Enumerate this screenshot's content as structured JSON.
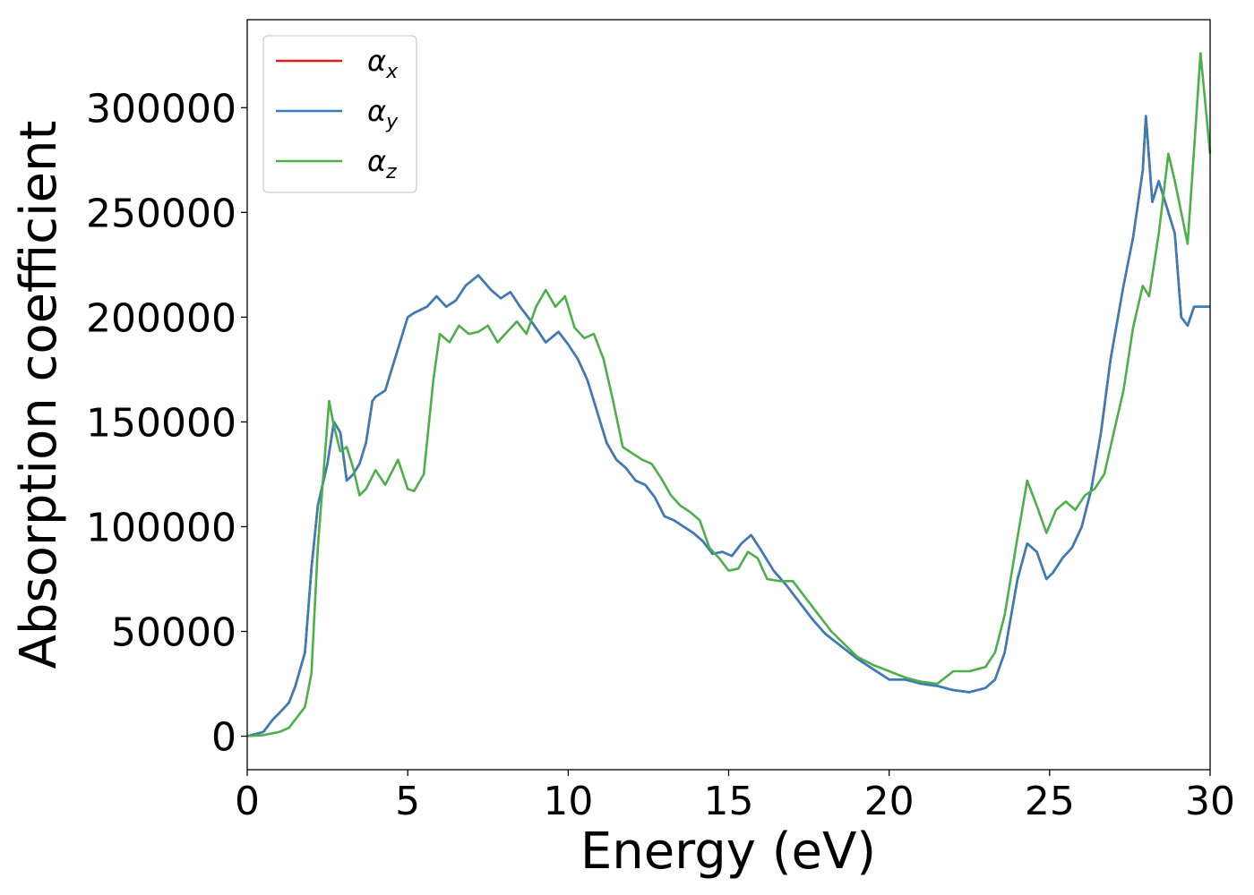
{
  "chart_data": {
    "type": "line",
    "title": "",
    "xlabel": "Energy (eV)",
    "ylabel": "Absorption coefficient",
    "xlim": [
      0,
      30
    ],
    "ylim": [
      -16000,
      342000
    ],
    "xticks": [
      "0",
      "5",
      "10",
      "15",
      "20",
      "25",
      "30"
    ],
    "yticks": [
      "0",
      "50000",
      "100000",
      "150000",
      "200000",
      "250000",
      "300000"
    ],
    "grid": false,
    "legend_position": "top-left",
    "legend": [
      {
        "greek": "α",
        "sub": "x",
        "color": "#e41a1c"
      },
      {
        "greek": "α",
        "sub": "y",
        "color": "#377eb8"
      },
      {
        "greek": "α",
        "sub": "z",
        "color": "#4daf4a"
      }
    ],
    "series": [
      {
        "name": "αx",
        "color": "#e41a1c",
        "x": [
          0,
          0.5,
          0.8,
          1.0,
          1.3,
          1.5,
          1.8,
          2.0,
          2.2,
          2.5,
          2.7,
          2.9,
          3.1,
          3.3,
          3.5,
          3.7,
          3.9,
          4.0,
          4.3,
          4.6,
          5.0,
          5.2,
          5.6,
          5.9,
          6.2,
          6.5,
          6.8,
          7.2,
          7.6,
          7.9,
          8.2,
          8.5,
          8.9,
          9.3,
          9.7,
          10.0,
          10.3,
          10.6,
          10.9,
          11.2,
          11.5,
          11.8,
          12.1,
          12.4,
          12.7,
          13.0,
          13.3,
          13.6,
          13.9,
          14.2,
          14.5,
          14.8,
          15.1,
          15.4,
          15.7,
          16.0,
          16.4,
          16.8,
          17.2,
          17.6,
          18.0,
          18.5,
          19.0,
          19.5,
          20.0,
          20.5,
          21.0,
          21.5,
          22.0,
          22.5,
          23.0,
          23.3,
          23.6,
          24.0,
          24.3,
          24.6,
          24.9,
          25.1,
          25.4,
          25.7,
          26.0,
          26.3,
          26.6,
          26.9,
          27.3,
          27.6,
          27.9,
          28.0,
          28.2,
          28.4,
          28.6,
          28.9,
          29.1,
          29.3,
          29.5,
          29.7,
          30.0
        ],
        "y": [
          0,
          2000,
          8000,
          11000,
          16000,
          24000,
          40000,
          80000,
          110000,
          130000,
          150000,
          145000,
          122000,
          125000,
          130000,
          140000,
          160000,
          162000,
          165000,
          180000,
          200000,
          202000,
          205000,
          210000,
          205000,
          208000,
          215000,
          220000,
          213000,
          209000,
          212000,
          205000,
          197000,
          188000,
          193000,
          187000,
          180000,
          170000,
          155000,
          140000,
          132000,
          128000,
          122000,
          120000,
          114000,
          105000,
          103000,
          100000,
          97000,
          93000,
          87000,
          88000,
          86000,
          92000,
          96000,
          89000,
          79000,
          72000,
          64000,
          56000,
          49000,
          43000,
          37000,
          32000,
          27000,
          27000,
          25000,
          24000,
          22000,
          21000,
          23000,
          27000,
          40000,
          75000,
          92000,
          88000,
          75000,
          78000,
          85000,
          90000,
          100000,
          118000,
          145000,
          180000,
          215000,
          238000,
          270000,
          296000,
          255000,
          265000,
          255000,
          240000,
          200000,
          196000,
          205000,
          205000,
          205000
        ]
      },
      {
        "name": "αy",
        "color": "#377eb8",
        "x": [
          0,
          0.5,
          0.8,
          1.0,
          1.3,
          1.5,
          1.8,
          2.0,
          2.2,
          2.5,
          2.7,
          2.9,
          3.1,
          3.3,
          3.5,
          3.7,
          3.9,
          4.0,
          4.3,
          4.6,
          5.0,
          5.2,
          5.6,
          5.9,
          6.2,
          6.5,
          6.8,
          7.2,
          7.6,
          7.9,
          8.2,
          8.5,
          8.9,
          9.3,
          9.7,
          10.0,
          10.3,
          10.6,
          10.9,
          11.2,
          11.5,
          11.8,
          12.1,
          12.4,
          12.7,
          13.0,
          13.3,
          13.6,
          13.9,
          14.2,
          14.5,
          14.8,
          15.1,
          15.4,
          15.7,
          16.0,
          16.4,
          16.8,
          17.2,
          17.6,
          18.0,
          18.5,
          19.0,
          19.5,
          20.0,
          20.5,
          21.0,
          21.5,
          22.0,
          22.5,
          23.0,
          23.3,
          23.6,
          24.0,
          24.3,
          24.6,
          24.9,
          25.1,
          25.4,
          25.7,
          26.0,
          26.3,
          26.6,
          26.9,
          27.3,
          27.6,
          27.9,
          28.0,
          28.2,
          28.4,
          28.6,
          28.9,
          29.1,
          29.3,
          29.5,
          29.7,
          30.0
        ],
        "y": [
          0,
          2000,
          8000,
          11000,
          16000,
          24000,
          40000,
          80000,
          110000,
          130000,
          150000,
          145000,
          122000,
          125000,
          130000,
          140000,
          160000,
          162000,
          165000,
          180000,
          200000,
          202000,
          205000,
          210000,
          205000,
          208000,
          215000,
          220000,
          213000,
          209000,
          212000,
          205000,
          197000,
          188000,
          193000,
          187000,
          180000,
          170000,
          155000,
          140000,
          132000,
          128000,
          122000,
          120000,
          114000,
          105000,
          103000,
          100000,
          97000,
          93000,
          87000,
          88000,
          86000,
          92000,
          96000,
          89000,
          79000,
          72000,
          64000,
          56000,
          49000,
          43000,
          37000,
          32000,
          27000,
          27000,
          25000,
          24000,
          22000,
          21000,
          23000,
          27000,
          40000,
          75000,
          92000,
          88000,
          75000,
          78000,
          85000,
          90000,
          100000,
          118000,
          145000,
          180000,
          215000,
          238000,
          270000,
          296000,
          255000,
          265000,
          255000,
          240000,
          200000,
          196000,
          205000,
          205000,
          205000
        ]
      },
      {
        "name": "αz",
        "color": "#4daf4a",
        "x": [
          0,
          0.5,
          1.0,
          1.3,
          1.5,
          1.8,
          2.0,
          2.2,
          2.4,
          2.55,
          2.7,
          2.9,
          3.1,
          3.3,
          3.5,
          3.7,
          4.0,
          4.3,
          4.7,
          5.0,
          5.2,
          5.5,
          5.8,
          6.0,
          6.3,
          6.6,
          6.9,
          7.2,
          7.5,
          7.8,
          8.1,
          8.4,
          8.7,
          9.0,
          9.3,
          9.6,
          9.9,
          10.2,
          10.5,
          10.8,
          11.1,
          11.4,
          11.7,
          12.0,
          12.3,
          12.6,
          12.9,
          13.2,
          13.5,
          13.8,
          14.1,
          14.4,
          14.7,
          15.0,
          15.3,
          15.6,
          15.9,
          16.2,
          16.6,
          17.0,
          17.4,
          17.8,
          18.2,
          18.6,
          19.0,
          19.5,
          20.0,
          20.5,
          21.0,
          21.5,
          22.0,
          22.5,
          23.0,
          23.3,
          23.6,
          24.0,
          24.3,
          24.6,
          24.9,
          25.2,
          25.5,
          25.8,
          26.1,
          26.4,
          26.7,
          27.0,
          27.3,
          27.6,
          27.9,
          28.1,
          28.4,
          28.7,
          28.9,
          29.1,
          29.3,
          29.5,
          29.7,
          30.0
        ],
        "y": [
          0,
          500,
          2000,
          4000,
          8000,
          14000,
          30000,
          90000,
          130000,
          160000,
          148000,
          136000,
          138000,
          128000,
          115000,
          118000,
          127000,
          120000,
          132000,
          118000,
          117000,
          125000,
          170000,
          192000,
          188000,
          196000,
          192000,
          193000,
          196000,
          188000,
          193000,
          198000,
          192000,
          205000,
          213000,
          205000,
          210000,
          195000,
          190000,
          192000,
          180000,
          160000,
          138000,
          135000,
          132000,
          130000,
          123000,
          115000,
          110000,
          107000,
          103000,
          90000,
          85000,
          79000,
          80000,
          88000,
          85000,
          75000,
          74000,
          74000,
          66000,
          58000,
          50000,
          44000,
          38000,
          34000,
          31000,
          28000,
          26000,
          25000,
          31000,
          31000,
          33000,
          40000,
          58000,
          95000,
          122000,
          110000,
          97000,
          108000,
          112000,
          108000,
          115000,
          118000,
          125000,
          145000,
          165000,
          195000,
          215000,
          210000,
          240000,
          278000,
          265000,
          250000,
          235000,
          280000,
          326000,
          278000
        ]
      }
    ]
  }
}
